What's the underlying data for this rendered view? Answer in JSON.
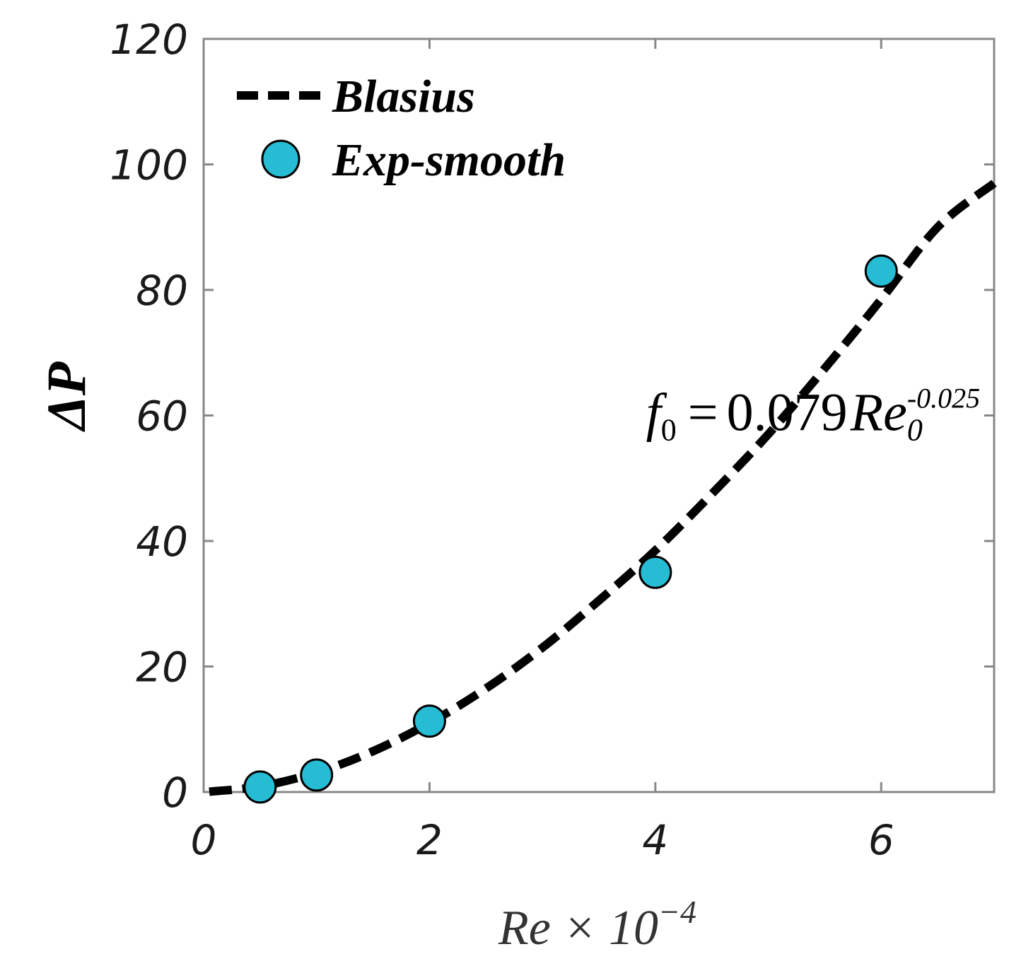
{
  "chart_data": {
    "type": "scatter",
    "xlabel": {
      "base": "Re × 10",
      "sup": "−4"
    },
    "ylabel": "ΔP",
    "xlim": [
      0,
      7
    ],
    "ylim": [
      0,
      120
    ],
    "xticks": [
      "0",
      "2",
      "4",
      "6"
    ],
    "yticks": [
      "0",
      "20",
      "40",
      "60",
      "80",
      "100",
      "120"
    ],
    "xtick_values": [
      0,
      2,
      4,
      6
    ],
    "ytick_values": [
      0,
      20,
      40,
      60,
      80,
      100,
      120
    ],
    "grid": false,
    "legend_position": "top-left",
    "series": [
      {
        "name": "Blasius",
        "style": "dashed-line",
        "color": "#000000",
        "x": [
          0.05,
          0.5,
          1,
          1.5,
          2,
          2.5,
          3,
          3.5,
          4,
          4.5,
          5,
          5.5,
          6,
          6.5,
          7
        ],
        "y": [
          0.05,
          0.9,
          3.1,
          6.5,
          11,
          16.5,
          23,
          30.5,
          38.5,
          47.5,
          57,
          67.5,
          78.5,
          90,
          97
        ]
      },
      {
        "name": "Exp-smooth",
        "style": "marker",
        "color": "#25bcd4",
        "x": [
          0.5,
          1,
          2,
          4,
          6
        ],
        "y": [
          0.8,
          2.7,
          11.3,
          35,
          83
        ]
      }
    ],
    "annotation": {
      "f": "f",
      "f_sub": "0",
      "equals": "=",
      "coef": "0.079",
      "re": "Re",
      "re_sub": "0",
      "exponent": "-0.025",
      "x": 4.7,
      "y": 61
    }
  }
}
